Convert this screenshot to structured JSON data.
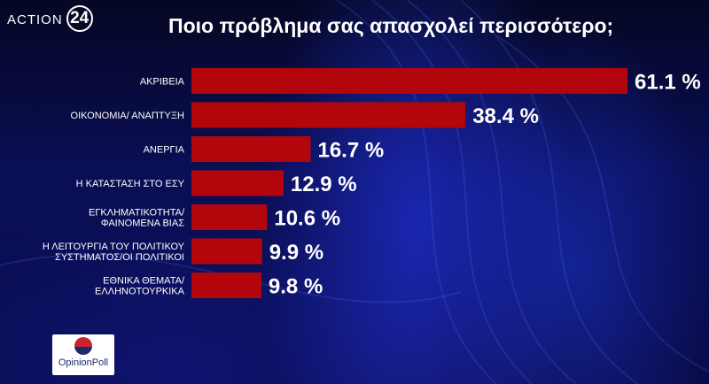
{
  "brand": {
    "name": "ACTION",
    "number": "24"
  },
  "logo": {
    "name": "OpinionPoll"
  },
  "colors": {
    "bar": "#b3060c",
    "text": "#ffffff"
  },
  "chart_data": {
    "type": "bar",
    "orientation": "horizontal",
    "title": "Ποιο πρόβλημα σας απασχολεί περισσότερο;",
    "categories": [
      [
        "ΑΚΡΙΒΕΙΑ"
      ],
      [
        "ΟΙΚΟΝΟΜΙΑ/ ΑΝΑΠΤΥΞΗ"
      ],
      [
        "ΑΝΕΡΓΙΑ"
      ],
      [
        "Η ΚΑΤΑΣΤΑΣΗ ΣΤΟ ΕΣΥ"
      ],
      [
        "ΕΓΚΛΗΜΑΤΙΚΟΤΗΤΑ/",
        "ΦΑΙΝΟΜΕΝΑ ΒΙΑΣ"
      ],
      [
        "Η ΛΕΙΤΟΥΡΓΙΑ ΤΟΥ ΠΟΛΙΤΙΚΟΥ",
        "ΣΥΣΤΗΜΑΤΟΣ/ΟΙ ΠΟΛΙΤΙΚΟΙ"
      ],
      [
        "ΕΘΝΙΚΑ ΘΕΜΑΤΑ/",
        "ΕΛΛΗΝΟΤΟΥΡΚΙΚΑ"
      ]
    ],
    "values": [
      61.1,
      38.4,
      16.7,
      12.9,
      10.6,
      9.9,
      9.8
    ],
    "value_labels": [
      "61.1 %",
      "38.4 %",
      "16.7 %",
      "12.9 %",
      "10.6 %",
      "9.9 %",
      "9.8 %"
    ],
    "xlim": [
      0,
      61.1
    ],
    "grid": false
  }
}
